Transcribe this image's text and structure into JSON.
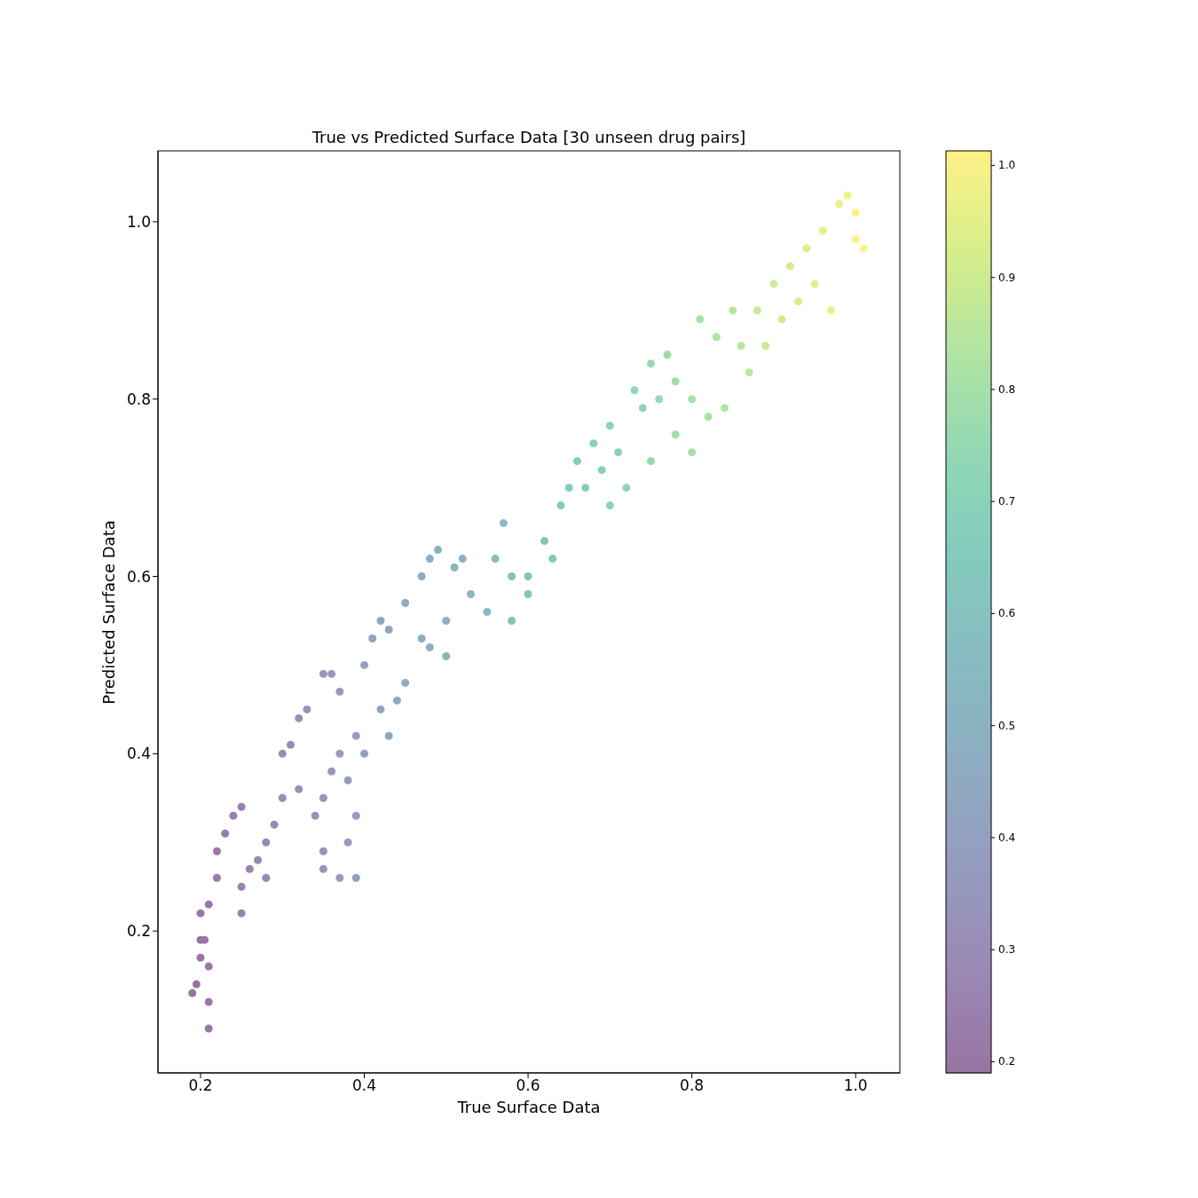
{
  "chart_data": {
    "type": "scatter",
    "title": "True vs Predicted Surface Data [30 unseen drug pairs]",
    "xlabel": "True Surface Data",
    "ylabel": "Predicted Surface Data",
    "xlim": [
      0.148,
      1.054
    ],
    "ylim": [
      0.04,
      1.08
    ],
    "xticks": [
      0.2,
      0.4,
      0.6,
      0.8,
      {
        "value": 1,
        "label": "1.0"
      }
    ],
    "yticks": [
      0.2,
      0.4,
      0.6,
      0.8,
      {
        "value": 1,
        "label": "1.0"
      }
    ],
    "clim": [
      0.19,
      1.013
    ],
    "cticks": [
      0.2,
      0.3,
      0.4,
      0.5,
      0.6,
      0.7,
      0.8,
      0.9,
      {
        "value": 1,
        "label": "1.0"
      }
    ],
    "marker": "circle",
    "x": [
      0.19,
      0.195,
      0.2,
      0.205,
      0.21,
      0.21,
      0.21,
      0.2,
      0.2,
      0.21,
      0.22,
      0.22,
      0.23,
      0.24,
      0.25,
      0.25,
      0.25,
      0.26,
      0.27,
      0.28,
      0.28,
      0.29,
      0.3,
      0.3,
      0.31,
      0.32,
      0.33,
      0.32,
      0.34,
      0.35,
      0.35,
      0.36,
      0.37,
      0.35,
      0.35,
      0.37,
      0.39,
      0.38,
      0.39,
      0.36,
      0.37,
      0.38,
      0.39,
      0.4,
      0.4,
      0.41,
      0.42,
      0.43,
      0.42,
      0.43,
      0.44,
      0.45,
      0.45,
      0.47,
      0.48,
      0.49,
      0.47,
      0.48,
      0.5,
      0.5,
      0.51,
      0.52,
      0.53,
      0.55,
      0.56,
      0.57,
      0.58,
      0.58,
      0.6,
      0.6,
      0.62,
      0.63,
      0.64,
      0.65,
      0.66,
      0.67,
      0.68,
      0.69,
      0.7,
      0.7,
      0.71,
      0.72,
      0.73,
      0.74,
      0.75,
      0.75,
      0.76,
      0.77,
      0.78,
      0.78,
      0.8,
      0.8,
      0.81,
      0.82,
      0.83,
      0.84,
      0.85,
      0.86,
      0.87,
      0.88,
      0.89,
      0.9,
      0.91,
      0.92,
      0.93,
      0.94,
      0.95,
      0.96,
      0.97,
      0.98,
      0.99,
      1.0,
      1.01,
      1.0
    ],
    "values": [
      0.13,
      0.14,
      0.19,
      0.19,
      0.09,
      0.12,
      0.16,
      0.17,
      0.22,
      0.23,
      0.26,
      0.29,
      0.31,
      0.33,
      0.34,
      0.22,
      0.25,
      0.27,
      0.28,
      0.26,
      0.3,
      0.32,
      0.35,
      0.4,
      0.41,
      0.44,
      0.45,
      0.36,
      0.33,
      0.35,
      0.49,
      0.49,
      0.47,
      0.29,
      0.27,
      0.26,
      0.26,
      0.3,
      0.33,
      0.38,
      0.4,
      0.37,
      0.42,
      0.4,
      0.5,
      0.53,
      0.55,
      0.54,
      0.45,
      0.42,
      0.46,
      0.48,
      0.57,
      0.6,
      0.62,
      0.63,
      0.53,
      0.52,
      0.51,
      0.55,
      0.61,
      0.62,
      0.58,
      0.56,
      0.62,
      0.66,
      0.6,
      0.55,
      0.6,
      0.58,
      0.64,
      0.62,
      0.68,
      0.7,
      0.73,
      0.7,
      0.75,
      0.72,
      0.68,
      0.77,
      0.74,
      0.7,
      0.81,
      0.79,
      0.73,
      0.84,
      0.8,
      0.85,
      0.76,
      0.82,
      0.8,
      0.74,
      0.89,
      0.78,
      0.87,
      0.79,
      0.9,
      0.86,
      0.83,
      0.9,
      0.86,
      0.93,
      0.89,
      0.95,
      0.91,
      0.97,
      0.93,
      0.99,
      0.9,
      1.02,
      1.03,
      0.98,
      0.97,
      1.01
    ],
    "cvalues": [
      0.19,
      0.195,
      0.2,
      0.205,
      0.21,
      0.21,
      0.21,
      0.2,
      0.2,
      0.21,
      0.22,
      0.22,
      0.23,
      0.24,
      0.25,
      0.25,
      0.25,
      0.26,
      0.27,
      0.28,
      0.28,
      0.29,
      0.3,
      0.3,
      0.31,
      0.32,
      0.33,
      0.32,
      0.34,
      0.35,
      0.35,
      0.36,
      0.37,
      0.35,
      0.35,
      0.37,
      0.39,
      0.38,
      0.39,
      0.36,
      0.37,
      0.38,
      0.39,
      0.4,
      0.4,
      0.41,
      0.42,
      0.43,
      0.42,
      0.43,
      0.44,
      0.45,
      0.45,
      0.47,
      0.48,
      0.49,
      0.47,
      0.48,
      0.5,
      0.5,
      0.51,
      0.52,
      0.53,
      0.55,
      0.56,
      0.57,
      0.58,
      0.58,
      0.6,
      0.6,
      0.62,
      0.63,
      0.64,
      0.65,
      0.66,
      0.67,
      0.68,
      0.69,
      0.7,
      0.7,
      0.71,
      0.72,
      0.73,
      0.74,
      0.75,
      0.75,
      0.76,
      0.77,
      0.78,
      0.78,
      0.8,
      0.8,
      0.81,
      0.82,
      0.83,
      0.84,
      0.85,
      0.86,
      0.87,
      0.88,
      0.89,
      0.9,
      0.91,
      0.92,
      0.93,
      0.94,
      0.95,
      0.96,
      0.97,
      0.98,
      0.99,
      1.0,
      1.01,
      1.0
    ]
  }
}
